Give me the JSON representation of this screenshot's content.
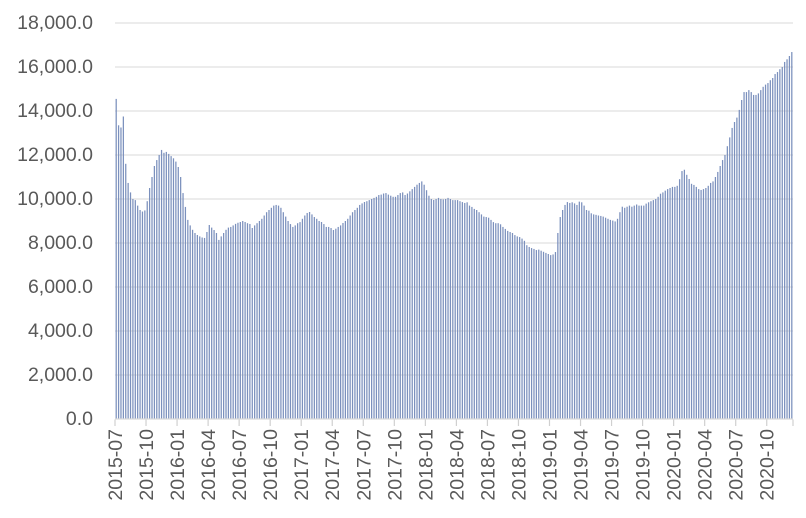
{
  "chart_data": {
    "type": "bar",
    "title": "",
    "frequency": "weekly",
    "start_period": "2015-07",
    "end_period": "2020-12",
    "x_tick_labels": [
      "2015-07",
      "2015-10",
      "2016-01",
      "2016-04",
      "2016-07",
      "2016-10",
      "2017-01",
      "2017-04",
      "2017-07",
      "2017-10",
      "2018-01",
      "2018-04",
      "2018-07",
      "2018-10",
      "2019-01",
      "2019-04",
      "2019-07",
      "2019-10",
      "2020-01",
      "2020-04",
      "2020-07",
      "2020-10"
    ],
    "x_tick_interval_weeks": 13,
    "values": [
      14550,
      13350,
      13250,
      13750,
      11600,
      10730,
      10300,
      10000,
      9950,
      9700,
      9500,
      9430,
      9480,
      9900,
      10500,
      11000,
      11500,
      11770,
      12000,
      12230,
      12100,
      12140,
      12050,
      11950,
      11850,
      11700,
      11455,
      11000,
      10270,
      9640,
      9050,
      8800,
      8600,
      8455,
      8364,
      8300,
      8250,
      8230,
      8500,
      8818,
      8700,
      8590,
      8455,
      8140,
      8300,
      8455,
      8600,
      8700,
      8730,
      8800,
      8870,
      8920,
      8955,
      9000,
      8955,
      8900,
      8864,
      8682,
      8800,
      8900,
      9000,
      9100,
      9250,
      9400,
      9500,
      9600,
      9700,
      9730,
      9700,
      9600,
      9400,
      9200,
      9000,
      8860,
      8730,
      8800,
      8900,
      8950,
      9100,
      9250,
      9364,
      9409,
      9300,
      9180,
      9100,
      9000,
      8955,
      8860,
      8730,
      8730,
      8680,
      8590,
      8650,
      8730,
      8800,
      8910,
      9000,
      9100,
      9250,
      9400,
      9500,
      9600,
      9730,
      9800,
      9864,
      9900,
      9950,
      10000,
      10050,
      10100,
      10180,
      10200,
      10250,
      10270,
      10200,
      10150,
      10100,
      10100,
      10180,
      10270,
      10300,
      10180,
      10250,
      10350,
      10450,
      10550,
      10650,
      10730,
      10800,
      10650,
      10400,
      10150,
      10000,
      9955,
      10000,
      10050,
      10000,
      9980,
      10000,
      10050,
      10000,
      9950,
      9950,
      9950,
      9900,
      9860,
      9820,
      9850,
      9700,
      9640,
      9550,
      9500,
      9400,
      9300,
      9200,
      9180,
      9150,
      9050,
      8950,
      8900,
      8900,
      8850,
      8730,
      8640,
      8550,
      8500,
      8455,
      8360,
      8300,
      8270,
      8200,
      8100,
      7900,
      7820,
      7770,
      7730,
      7680,
      7700,
      7650,
      7600,
      7550,
      7500,
      7450,
      7480,
      7590,
      8455,
      9180,
      9500,
      9730,
      9860,
      9820,
      9850,
      9800,
      9730,
      9880,
      9850,
      9700,
      9500,
      9470,
      9350,
      9300,
      9280,
      9250,
      9230,
      9200,
      9150,
      9100,
      9050,
      9020,
      8980,
      9100,
      9400,
      9650,
      9600,
      9650,
      9700,
      9650,
      9700,
      9750,
      9700,
      9700,
      9700,
      9790,
      9850,
      9900,
      9950,
      10000,
      10100,
      10240,
      10300,
      10380,
      10450,
      10500,
      10550,
      10550,
      10600,
      10900,
      11270,
      11330,
      11100,
      10910,
      10690,
      10640,
      10550,
      10450,
      10410,
      10450,
      10500,
      10600,
      10730,
      10800,
      11000,
      11230,
      11500,
      11770,
      12000,
      12400,
      12800,
      13230,
      13500,
      13700,
      14050,
      14500,
      14860,
      14860,
      14950,
      14860,
      14730,
      14730,
      14800,
      14950,
      15100,
      15200,
      15270,
      15400,
      15500,
      15680,
      15770,
      15900,
      16000,
      16230,
      16350,
      16500,
      16680
    ],
    "ylim": [
      0,
      18000
    ],
    "y_tick_step": 2000,
    "y_tick_labels": [
      "0.0",
      "2,000.0",
      "4,000.0",
      "6,000.0",
      "8,000.0",
      "10,000.0",
      "12,000.0",
      "14,000.0",
      "16,000.0",
      "18,000.0"
    ],
    "grid": true,
    "legend": false,
    "xlabel": "",
    "ylabel": "",
    "bar_color": "#7b90bd",
    "gridline_color": "#d9d9d9",
    "axis_line_color": "#d9d9d9",
    "tick_color": "#d0d0d0",
    "label_color": "#595959"
  }
}
